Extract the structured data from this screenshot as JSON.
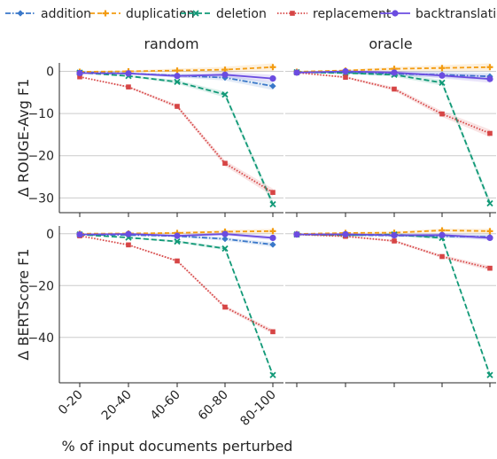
{
  "chart_data": {
    "type": "line",
    "categories": [
      "0-20",
      "20-40",
      "40-60",
      "60-80",
      "80-100"
    ],
    "xlabel": "% of input documents perturbed",
    "legend_position": "top",
    "grid": "horizontal",
    "series_styles": [
      {
        "name": "addition",
        "color": "#3a78c9",
        "dash": "6,2,1.5,2",
        "marker": "diamond"
      },
      {
        "name": "duplication",
        "color": "#f39c12",
        "dash": "5,3",
        "marker": "plus"
      },
      {
        "name": "deletion",
        "color": "#119977",
        "dash": "6,3",
        "marker": "x"
      },
      {
        "name": "replacement",
        "color": "#d64545",
        "dash": "1.5,1.8",
        "marker": "square"
      },
      {
        "name": "backtranslation",
        "color": "#6b4ce0",
        "dash": "",
        "marker": "circle"
      }
    ],
    "columns": [
      "random",
      "oracle"
    ],
    "rows": [
      {
        "ylabel": "Δ ROUGE-Avg F1",
        "ylim": [
          -33.5,
          2
        ],
        "yticks": [
          0,
          -10,
          -20,
          -30
        ]
      },
      {
        "ylabel": "Δ BERTScore F1",
        "ylim": [
          -57.5,
          3
        ],
        "yticks": [
          0,
          -20,
          -40
        ]
      }
    ],
    "panels": [
      {
        "row": 0,
        "col": 0,
        "series": [
          {
            "name": "addition",
            "values": [
              -0.2,
              -0.5,
              -1.0,
              -1.5,
              -3.5
            ]
          },
          {
            "name": "duplication",
            "values": [
              -0.1,
              0.0,
              0.2,
              0.4,
              1.0
            ]
          },
          {
            "name": "deletion",
            "values": [
              -0.3,
              -1.1,
              -2.5,
              -5.5,
              -31.5
            ]
          },
          {
            "name": "replacement",
            "values": [
              -1.3,
              -3.7,
              -8.3,
              -21.8,
              -28.7
            ]
          },
          {
            "name": "backtranslation",
            "values": [
              -0.4,
              -0.5,
              -1.1,
              -0.8,
              -1.7
            ]
          }
        ]
      },
      {
        "row": 0,
        "col": 1,
        "series": [
          {
            "name": "addition",
            "values": [
              -0.2,
              -0.3,
              -0.6,
              -0.8,
              -1.2
            ]
          },
          {
            "name": "duplication",
            "values": [
              -0.1,
              0.2,
              0.6,
              0.8,
              1.0
            ]
          },
          {
            "name": "deletion",
            "values": [
              -0.2,
              -0.4,
              -0.8,
              -2.7,
              -31.3
            ]
          },
          {
            "name": "replacement",
            "values": [
              -0.3,
              -1.4,
              -4.2,
              -10.1,
              -14.7
            ]
          },
          {
            "name": "backtranslation",
            "values": [
              -0.3,
              0.0,
              -0.3,
              -1.0,
              -1.8
            ]
          }
        ]
      },
      {
        "row": 1,
        "col": 0,
        "series": [
          {
            "name": "addition",
            "values": [
              -0.4,
              -0.5,
              -0.9,
              -2.0,
              -4.2
            ]
          },
          {
            "name": "duplication",
            "values": [
              0.0,
              0.1,
              0.3,
              0.8,
              1.0
            ]
          },
          {
            "name": "deletion",
            "values": [
              -0.3,
              -1.5,
              -3.0,
              -5.7,
              -54.5
            ]
          },
          {
            "name": "replacement",
            "values": [
              -0.8,
              -4.3,
              -10.5,
              -28.3,
              -37.8
            ]
          },
          {
            "name": "backtranslation",
            "values": [
              -0.3,
              -0.1,
              -0.8,
              -0.1,
              -1.6
            ]
          }
        ]
      },
      {
        "row": 1,
        "col": 1,
        "series": [
          {
            "name": "addition",
            "values": [
              -0.2,
              -0.5,
              -0.7,
              -1.0,
              -1.2
            ]
          },
          {
            "name": "duplication",
            "values": [
              -0.1,
              0.3,
              0.4,
              1.3,
              1.0
            ]
          },
          {
            "name": "deletion",
            "values": [
              -0.3,
              -0.6,
              -0.3,
              -1.6,
              -54.5
            ]
          },
          {
            "name": "replacement",
            "values": [
              -0.3,
              -1.0,
              -2.8,
              -8.8,
              -13.3
            ]
          },
          {
            "name": "backtranslation",
            "values": [
              -0.3,
              -0.2,
              -0.6,
              -0.5,
              -1.6
            ]
          }
        ]
      }
    ]
  }
}
